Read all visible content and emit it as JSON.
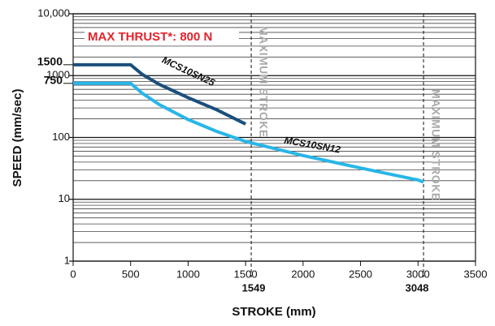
{
  "chart_data": {
    "type": "line",
    "y_label": "SPEED (mm/sec)",
    "x_label": "STROKE (mm)",
    "annotation": "MAX THRUST*: 800 N",
    "log_y": true,
    "grid": true,
    "xlim": [
      0,
      3500
    ],
    "xticks": [
      0,
      500,
      1000,
      1500,
      2000,
      2500,
      3000,
      3500
    ],
    "ylim": [
      1,
      10000
    ],
    "yticks": [
      1,
      10,
      100,
      1000,
      {
        "value": 10000,
        "label": "10,000"
      }
    ],
    "ymarks": [
      1500,
      750
    ],
    "max_strokes": [
      {
        "value": 1549,
        "label": "MAXIMUM STROKE"
      },
      {
        "value": 3048,
        "label": "MAXIMUM STROKE"
      }
    ],
    "series": [
      {
        "name": "MCS10SN25",
        "color": "#1b4f7c",
        "x": [
          0,
          500,
          600,
          750,
          1000,
          1250,
          1500
        ],
        "values": [
          1500,
          1500,
          1050,
          720,
          440,
          280,
          165
        ]
      },
      {
        "name": "MCS10SN12",
        "color": "#29b6e8",
        "x": [
          0,
          500,
          600,
          750,
          1000,
          1250,
          1500,
          2000,
          2500,
          3000,
          3048
        ],
        "values": [
          750,
          750,
          520,
          340,
          195,
          125,
          86,
          51,
          32,
          20.5,
          19
        ]
      }
    ]
  }
}
